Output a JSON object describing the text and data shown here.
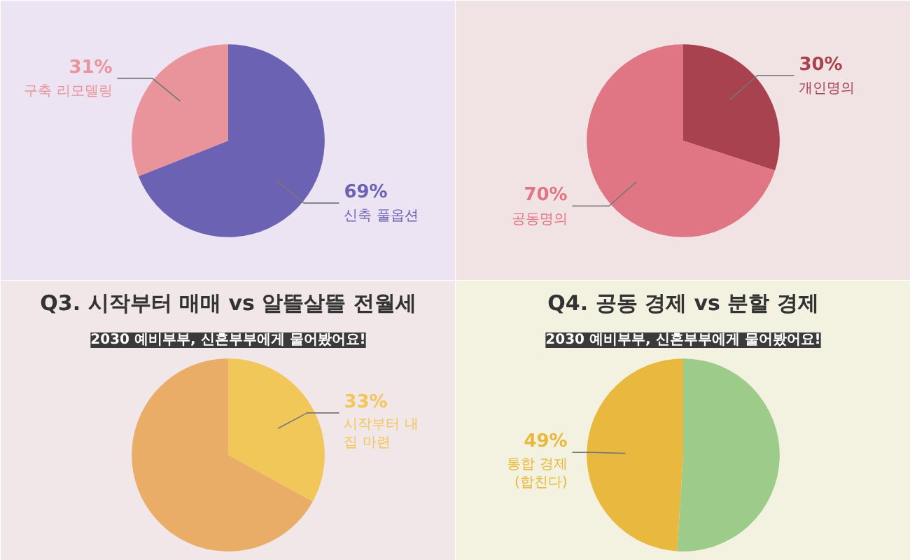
{
  "chart_data": [
    {
      "type": "pie",
      "categories": [
        "신축 풀옵션",
        "구축 리모델링"
      ],
      "values": [
        69,
        31
      ],
      "colors": [
        "#6b62b4",
        "#e8949a"
      ],
      "value_labels": [
        "69%",
        "31%"
      ]
    },
    {
      "type": "pie",
      "categories": [
        "개인명의",
        "공동명의"
      ],
      "values": [
        30,
        70
      ],
      "colors": [
        "#a8424f",
        "#e07683"
      ],
      "value_labels": [
        "30%",
        "70%"
      ]
    },
    {
      "type": "pie",
      "title": "Q3. 시작부터 매매 vs 알뜰살뜰 전월세",
      "subtitle": "2030 예비부부, 신혼부부에게 물어봤어요!",
      "categories": [
        "시작부터 내 집 마련",
        null
      ],
      "values": [
        33,
        67
      ],
      "colors": [
        "#f2c75a",
        "#e9ad68"
      ],
      "value_labels": [
        "33%",
        null
      ]
    },
    {
      "type": "pie",
      "title": "Q4. 공동 경제 vs 분할 경제",
      "subtitle": "2030 예비부부, 신혼부부에게 물어봤어요!",
      "categories": [
        null,
        "통합 경제 (합친다)"
      ],
      "values": [
        51,
        49
      ],
      "colors": [
        "#9ccb8a",
        "#e8b93e"
      ],
      "value_labels": [
        null,
        "49%"
      ]
    }
  ]
}
